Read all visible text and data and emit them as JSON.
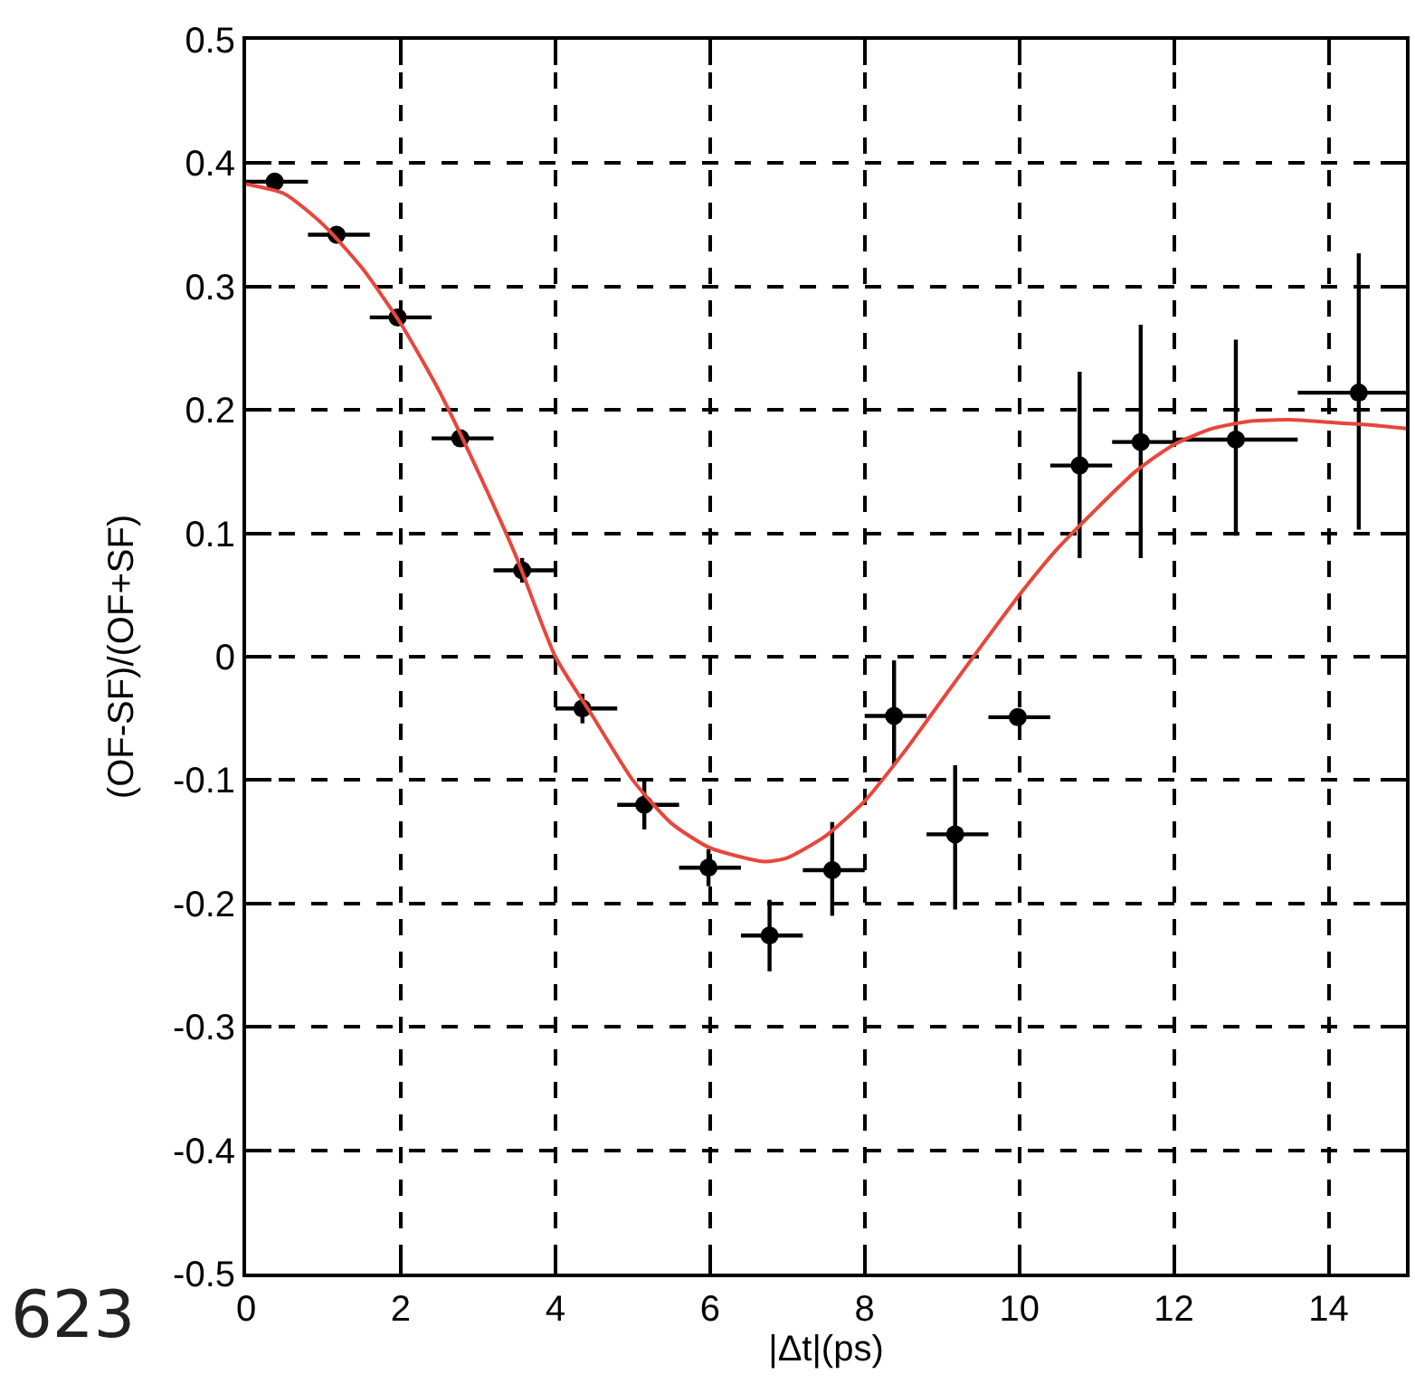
{
  "chart_data": {
    "type": "scatter",
    "xlabel": "|Δt|(ps)",
    "ylabel": "(OF-SF)/(OF+SF)",
    "annotations": [
      "623"
    ],
    "xlim": [
      0,
      15
    ],
    "xticks": [
      0,
      2,
      4,
      6,
      8,
      10,
      12,
      14
    ],
    "ylim": [
      -0.5,
      0.5
    ],
    "yticks": [
      -0.5,
      -0.4,
      -0.3,
      -0.2,
      -0.1,
      0,
      0.1,
      0.2,
      0.3,
      0.4,
      0.5
    ],
    "grid": true,
    "marker": "circle",
    "series": [
      {
        "color": "#000000",
        "x": [
          0.37,
          1.17,
          1.96,
          2.77,
          3.57,
          4.35,
          5.15,
          5.98,
          6.77,
          7.58,
          8.38,
          9.17,
          9.98,
          10.78,
          11.57,
          12.8,
          14.39
        ],
        "values": [
          0.385,
          0.342,
          0.275,
          0.177,
          0.07,
          -0.042,
          -0.12,
          -0.171,
          -0.226,
          -0.173,
          -0.048,
          -0.144,
          -0.049,
          0.155,
          0.174,
          0.176,
          0.214
        ],
        "errors": [
          null,
          null,
          null,
          null,
          0.01,
          0.012,
          0.02,
          0.015,
          [
            -0.255,
            -0.197
          ],
          [
            -0.21,
            -0.134
          ],
          [
            -0.088,
            -0.003
          ],
          [
            -0.205,
            -0.088
          ],
          null,
          [
            0.08,
            0.231
          ],
          [
            0.08,
            0.269
          ],
          [
            0.098,
            0.257
          ],
          [
            0.103,
            0.327
          ]
        ],
        "xerrors": [
          [
            0,
            0.8
          ],
          [
            0.8,
            1.6
          ],
          [
            1.6,
            2.4
          ],
          [
            2.4,
            3.2
          ],
          [
            3.2,
            4.0
          ],
          [
            4.0,
            4.8
          ],
          [
            4.8,
            5.6
          ],
          [
            5.6,
            6.4
          ],
          [
            6.4,
            7.2
          ],
          [
            7.2,
            8.0
          ],
          [
            8.0,
            8.8
          ],
          [
            8.8,
            9.6
          ],
          [
            9.6,
            10.4
          ],
          [
            10.4,
            11.2
          ],
          [
            11.2,
            12.0
          ],
          [
            12.0,
            13.6
          ],
          [
            13.6,
            15
          ]
        ]
      },
      {
        "type": "line",
        "color": "#e8463c",
        "marker": "none",
        "line_style": "solid",
        "x": [
          0,
          0.5,
          1,
          1.5,
          2,
          2.5,
          3,
          3.5,
          4,
          4.5,
          5,
          5.5,
          6,
          6.7,
          7,
          7.5,
          8,
          8.5,
          9,
          9.5,
          10,
          10.5,
          11,
          11.5,
          12,
          12.5,
          13,
          13.5,
          14,
          14.5,
          15
        ],
        "values": [
          0.383,
          0.375,
          0.35,
          0.315,
          0.27,
          0.215,
          0.15,
          0.08,
          0.0,
          -0.05,
          -0.1,
          -0.135,
          -0.155,
          -0.166,
          -0.163,
          -0.145,
          -0.117,
          -0.078,
          -0.035,
          0.008,
          0.05,
          0.088,
          0.12,
          0.15,
          0.172,
          0.185,
          0.191,
          0.192,
          0.19,
          0.188,
          0.185
        ]
      }
    ]
  }
}
